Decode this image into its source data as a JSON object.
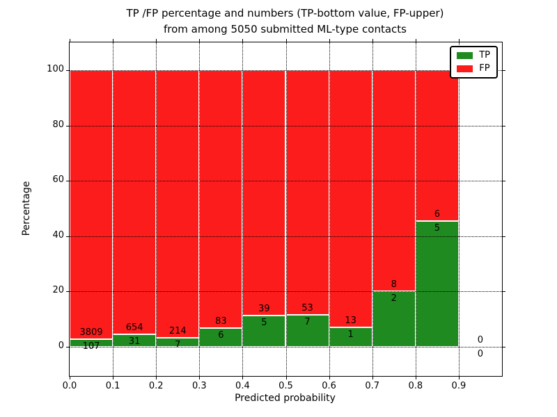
{
  "title": {
    "line1": "TP /FP percentage and numbers (TP-bottom value, FP-upper)",
    "line2": "from among 5050 submitted ML-type contacts"
  },
  "axes": {
    "xlabel": "Predicted probability",
    "ylabel": "Percentage",
    "xtick_labels": [
      "0.0",
      "0.1",
      "0.2",
      "0.3",
      "0.4",
      "0.5",
      "0.6",
      "0.7",
      "0.8",
      "0.9"
    ],
    "ytick_labels": [
      "0",
      "20",
      "40",
      "60",
      "80",
      "100"
    ]
  },
  "legend": {
    "items": [
      {
        "label": "TP",
        "color": "#1f8a1f"
      },
      {
        "label": "FP",
        "color": "#fd1c1c"
      }
    ]
  },
  "colors": {
    "tp": "#1f8a1f",
    "fp": "#fd1c1c",
    "grid": "#000000",
    "background": "#ffffff"
  },
  "chart_data": {
    "type": "bar",
    "stacked": true,
    "title": "TP /FP percentage and numbers (TP-bottom value, FP-upper) from among 5050 submitted ML-type contacts",
    "xlabel": "Predicted probability",
    "ylabel": "Percentage",
    "xlim": [
      0.0,
      1.0
    ],
    "ylim": [
      -10.5,
      110.5
    ],
    "yticks": [
      0,
      20,
      40,
      60,
      80,
      100
    ],
    "xticks": [
      0.0,
      0.1,
      0.2,
      0.3,
      0.4,
      0.5,
      0.6,
      0.7,
      0.8,
      0.9
    ],
    "grid": "dotted",
    "legend_position": "upper right",
    "unit": "bars show TP%/FP% of each bin total (stacked to 100); labels show raw counts, TP bottom / FP upper",
    "bins": [
      {
        "x_start": 0.0,
        "x_end": 0.1,
        "tp_count": 107,
        "fp_count": 3809
      },
      {
        "x_start": 0.1,
        "x_end": 0.2,
        "tp_count": 31,
        "fp_count": 654
      },
      {
        "x_start": 0.2,
        "x_end": 0.3,
        "tp_count": 7,
        "fp_count": 214
      },
      {
        "x_start": 0.3,
        "x_end": 0.4,
        "tp_count": 6,
        "fp_count": 83
      },
      {
        "x_start": 0.4,
        "x_end": 0.5,
        "tp_count": 5,
        "fp_count": 39
      },
      {
        "x_start": 0.5,
        "x_end": 0.6,
        "tp_count": 7,
        "fp_count": 53
      },
      {
        "x_start": 0.6,
        "x_end": 0.7,
        "tp_count": 1,
        "fp_count": 13
      },
      {
        "x_start": 0.7,
        "x_end": 0.8,
        "tp_count": 2,
        "fp_count": 8
      },
      {
        "x_start": 0.8,
        "x_end": 0.9,
        "tp_count": 5,
        "fp_count": 6
      },
      {
        "x_start": 0.9,
        "x_end": 1.0,
        "tp_count": 0,
        "fp_count": 0
      }
    ]
  }
}
